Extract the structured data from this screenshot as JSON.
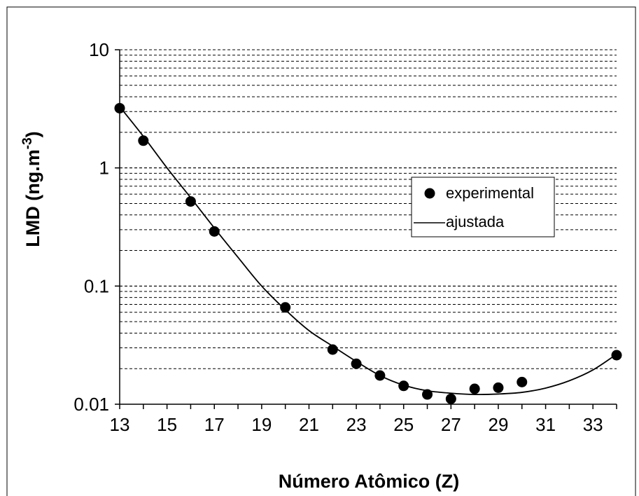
{
  "chart_data": {
    "type": "scatter",
    "xlabel": "Número Atômico (Z)",
    "ylabel_main": "LMD (ng.m",
    "ylabel_sup": "-3",
    "ylabel_close": ")",
    "xlim": [
      13,
      34
    ],
    "ylim": [
      0.01,
      10
    ],
    "yscale": "log",
    "xticks": [
      "13",
      "15",
      "17",
      "19",
      "21",
      "23",
      "25",
      "27",
      "29",
      "31",
      "33"
    ],
    "yticks": [
      "0.01",
      "0.1",
      "1",
      "10"
    ],
    "grid": "horizontal dashed (major and minor)",
    "legend_position": "center-right",
    "series": [
      {
        "name": "experimental",
        "kind": "points",
        "x": [
          13,
          14,
          16,
          17,
          20,
          22,
          23,
          24,
          25,
          26,
          27,
          28,
          29,
          30,
          34
        ],
        "y": [
          3.2,
          1.7,
          0.52,
          0.29,
          0.066,
          0.029,
          0.022,
          0.0175,
          0.0143,
          0.0121,
          0.0111,
          0.0135,
          0.0138,
          0.0154,
          0.026
        ]
      },
      {
        "name": "ajustada",
        "kind": "line",
        "x": [
          13,
          14,
          15,
          16,
          17,
          18,
          19,
          20,
          21,
          22,
          23,
          24,
          25,
          26,
          27,
          28,
          29,
          30,
          31,
          32,
          33,
          34
        ],
        "y": [
          3.3,
          1.85,
          1.0,
          0.56,
          0.31,
          0.175,
          0.1,
          0.063,
          0.042,
          0.031,
          0.023,
          0.0175,
          0.0145,
          0.013,
          0.0124,
          0.0121,
          0.0122,
          0.0126,
          0.0137,
          0.0158,
          0.0195,
          0.0265
        ]
      }
    ],
    "colors": {
      "marker": "#000000",
      "line": "#000000",
      "grid": "#000000"
    }
  }
}
